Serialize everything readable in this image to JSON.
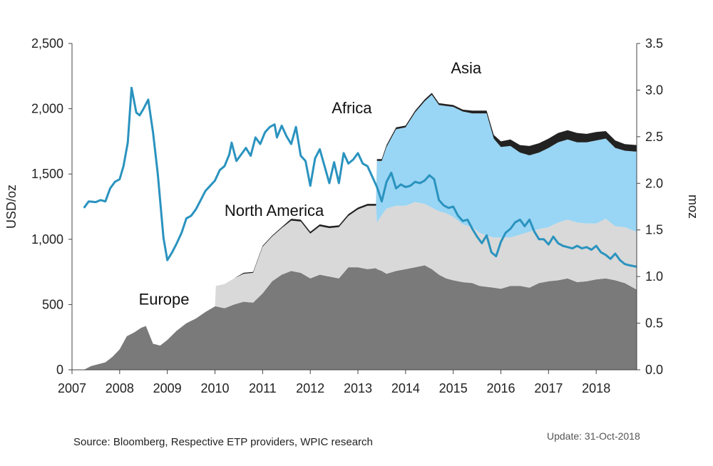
{
  "chart_data": {
    "type": "area",
    "source": "Source: Bloomberg, Respective ETP providers, WPIC research",
    "update": "Update: 31-Oct-2018",
    "y_left": {
      "label": "USD/oz",
      "ticks": [
        "0",
        "500",
        "1,000",
        "1,500",
        "2,000",
        "2,500"
      ],
      "range": [
        0,
        2500
      ]
    },
    "y_right": {
      "label": "moz",
      "ticks": [
        "0.0",
        "0.5",
        "1.0",
        "1.5",
        "2.0",
        "2.5",
        "3.0",
        "3.5"
      ],
      "range": [
        0,
        3.5
      ]
    },
    "x_axis": {
      "ticks": [
        "2007",
        "2008",
        "2009",
        "2010",
        "2011",
        "2012",
        "2013",
        "2014",
        "2015",
        "2016",
        "2017",
        "2018"
      ],
      "range": [
        2007,
        2018.85
      ]
    },
    "colors": {
      "europe": "#7a7a7a",
      "north_america": "#d9d9d9",
      "asia": "#99d5f4",
      "africa": "#222222",
      "price": "#2a93bf",
      "axis": "#444444"
    },
    "region_labels": [
      {
        "key": "europe",
        "text": "Europe",
        "x": 2008.4,
        "y": 0.7
      },
      {
        "key": "north_america",
        "text": "North America",
        "x": 2010.2,
        "y": 1.65
      },
      {
        "key": "africa",
        "text": "Africa",
        "x": 2012.45,
        "y": 2.75
      },
      {
        "key": "asia",
        "text": "Asia",
        "x": 2014.95,
        "y": 3.18
      }
    ],
    "stacks": {
      "x": [
        2007.25,
        2007.4,
        2007.55,
        2007.7,
        2007.85,
        2008.0,
        2008.15,
        2008.3,
        2008.45,
        2008.55,
        2008.7,
        2008.85,
        2009.0,
        2009.2,
        2009.4,
        2009.6,
        2009.8,
        2010.0,
        2010.02,
        2010.2,
        2010.4,
        2010.6,
        2010.8,
        2011.0,
        2011.2,
        2011.4,
        2011.6,
        2011.8,
        2012.0,
        2012.2,
        2012.4,
        2012.6,
        2012.8,
        2013.0,
        2013.2,
        2013.38,
        2013.4,
        2013.5,
        2013.6,
        2013.8,
        2014.0,
        2014.2,
        2014.4,
        2014.55,
        2014.7,
        2014.85,
        2015.0,
        2015.2,
        2015.4,
        2015.55,
        2015.7,
        2015.85,
        2016.0,
        2016.2,
        2016.4,
        2016.6,
        2016.8,
        2017.0,
        2017.2,
        2017.4,
        2017.6,
        2017.8,
        2018.0,
        2018.2,
        2018.4,
        2018.6,
        2018.85
      ],
      "europe": [
        0.0,
        0.04,
        0.06,
        0.08,
        0.14,
        0.22,
        0.36,
        0.4,
        0.45,
        0.47,
        0.28,
        0.26,
        0.32,
        0.42,
        0.5,
        0.55,
        0.62,
        0.68,
        0.68,
        0.66,
        0.7,
        0.73,
        0.72,
        0.82,
        0.95,
        1.02,
        1.06,
        1.04,
        0.98,
        1.02,
        1.0,
        0.98,
        1.1,
        1.1,
        1.08,
        1.09,
        1.08,
        1.06,
        1.03,
        1.06,
        1.08,
        1.1,
        1.12,
        1.08,
        1.02,
        0.98,
        0.96,
        0.94,
        0.93,
        0.9,
        0.89,
        0.88,
        0.87,
        0.9,
        0.9,
        0.88,
        0.93,
        0.95,
        0.96,
        0.98,
        0.94,
        0.95,
        0.97,
        0.98,
        0.96,
        0.93,
        0.86
      ],
      "north_america": [
        0.0,
        0.0,
        0.0,
        0.0,
        0.0,
        0.0,
        0.0,
        0.0,
        0.0,
        0.0,
        0.0,
        0.0,
        0.0,
        0.0,
        0.0,
        0.0,
        0.0,
        0.0,
        0.22,
        0.26,
        0.28,
        0.3,
        0.32,
        0.5,
        0.48,
        0.5,
        0.54,
        0.55,
        0.48,
        0.52,
        0.52,
        0.55,
        0.55,
        0.62,
        0.68,
        0.67,
        0.5,
        0.6,
        0.7,
        0.7,
        0.68,
        0.7,
        0.66,
        0.66,
        0.68,
        0.7,
        0.68,
        0.62,
        0.6,
        0.57,
        0.55,
        0.54,
        0.55,
        0.52,
        0.55,
        0.6,
        0.58,
        0.58,
        0.62,
        0.63,
        0.64,
        0.62,
        0.6,
        0.64,
        0.58,
        0.6,
        0.62
      ],
      "asia": [
        0.0,
        0.0,
        0.0,
        0.0,
        0.0,
        0.0,
        0.0,
        0.0,
        0.0,
        0.0,
        0.0,
        0.0,
        0.0,
        0.0,
        0.0,
        0.0,
        0.0,
        0.0,
        0.0,
        0.0,
        0.0,
        0.0,
        0.0,
        0.0,
        0.0,
        0.0,
        0.0,
        0.0,
        0.0,
        0.0,
        0.0,
        0.0,
        0.0,
        0.0,
        0.0,
        0.0,
        0.66,
        0.58,
        0.66,
        0.82,
        0.84,
        0.96,
        1.1,
        1.21,
        1.14,
        1.15,
        1.18,
        1.21,
        1.22,
        1.28,
        1.31,
        1.06,
        0.97,
        0.98,
        0.88,
        0.82,
        0.82,
        0.85,
        0.86,
        0.86,
        0.86,
        0.87,
        0.89,
        0.86,
        0.84,
        0.82,
        0.86
      ],
      "africa": [
        0.0,
        0.0,
        0.0,
        0.0,
        0.0,
        0.0,
        0.0,
        0.0,
        0.0,
        0.0,
        0.0,
        0.0,
        0.0,
        0.0,
        0.0,
        0.0,
        0.0,
        0.0,
        0.0,
        0.0,
        0.0,
        0.01,
        0.01,
        0.01,
        0.01,
        0.01,
        0.02,
        0.02,
        0.02,
        0.02,
        0.02,
        0.02,
        0.02,
        0.02,
        0.02,
        0.02,
        0.02,
        0.02,
        0.02,
        0.02,
        0.02,
        0.02,
        0.02,
        0.02,
        0.02,
        0.02,
        0.02,
        0.02,
        0.03,
        0.03,
        0.03,
        0.04,
        0.06,
        0.07,
        0.08,
        0.1,
        0.1,
        0.1,
        0.1,
        0.1,
        0.1,
        0.09,
        0.09,
        0.08,
        0.08,
        0.07,
        0.07
      ]
    },
    "price": {
      "x": [
        2007.25,
        2007.35,
        2007.5,
        2007.6,
        2007.7,
        2007.8,
        2007.9,
        2008.0,
        2008.08,
        2008.17,
        2008.25,
        2008.35,
        2008.42,
        2008.5,
        2008.6,
        2008.7,
        2008.8,
        2008.92,
        2009.0,
        2009.1,
        2009.2,
        2009.3,
        2009.4,
        2009.5,
        2009.6,
        2009.7,
        2009.8,
        2009.9,
        2010.0,
        2010.1,
        2010.2,
        2010.3,
        2010.35,
        2010.45,
        2010.55,
        2010.65,
        2010.75,
        2010.85,
        2010.95,
        2011.05,
        2011.15,
        2011.25,
        2011.3,
        2011.4,
        2011.5,
        2011.6,
        2011.7,
        2011.8,
        2011.9,
        2012.0,
        2012.1,
        2012.2,
        2012.3,
        2012.4,
        2012.5,
        2012.6,
        2012.7,
        2012.8,
        2012.9,
        2013.0,
        2013.1,
        2013.2,
        2013.3,
        2013.4,
        2013.5,
        2013.6,
        2013.7,
        2013.8,
        2013.9,
        2014.0,
        2014.1,
        2014.2,
        2014.3,
        2014.4,
        2014.5,
        2014.6,
        2014.7,
        2014.8,
        2014.9,
        2015.0,
        2015.1,
        2015.2,
        2015.3,
        2015.4,
        2015.5,
        2015.6,
        2015.7,
        2015.8,
        2015.9,
        2016.0,
        2016.1,
        2016.2,
        2016.3,
        2016.4,
        2016.5,
        2016.6,
        2016.7,
        2016.8,
        2016.9,
        2017.0,
        2017.1,
        2017.2,
        2017.3,
        2017.4,
        2017.5,
        2017.6,
        2017.7,
        2017.8,
        2017.9,
        2018.0,
        2018.1,
        2018.2,
        2018.3,
        2018.4,
        2018.5,
        2018.6,
        2018.7,
        2018.85
      ],
      "y": [
        1240,
        1290,
        1285,
        1300,
        1290,
        1390,
        1440,
        1460,
        1560,
        1740,
        2160,
        1970,
        1950,
        2000,
        2070,
        1820,
        1500,
        1010,
        840,
        900,
        970,
        1050,
        1160,
        1180,
        1230,
        1300,
        1370,
        1410,
        1450,
        1530,
        1560,
        1650,
        1740,
        1600,
        1650,
        1700,
        1640,
        1780,
        1730,
        1820,
        1860,
        1880,
        1780,
        1870,
        1790,
        1730,
        1860,
        1640,
        1600,
        1410,
        1620,
        1690,
        1560,
        1430,
        1590,
        1430,
        1660,
        1580,
        1610,
        1660,
        1580,
        1560,
        1480,
        1400,
        1290,
        1440,
        1510,
        1390,
        1420,
        1400,
        1410,
        1440,
        1430,
        1450,
        1490,
        1460,
        1300,
        1260,
        1240,
        1250,
        1180,
        1140,
        1150,
        1080,
        1020,
        970,
        1030,
        900,
        870,
        980,
        1050,
        1080,
        1130,
        1150,
        1100,
        1150,
        1060,
        1000,
        1000,
        960,
        1020,
        970,
        950,
        940,
        930,
        950,
        930,
        940,
        920,
        950,
        900,
        880,
        850,
        890,
        840,
        810,
        800,
        790
      ]
    }
  }
}
